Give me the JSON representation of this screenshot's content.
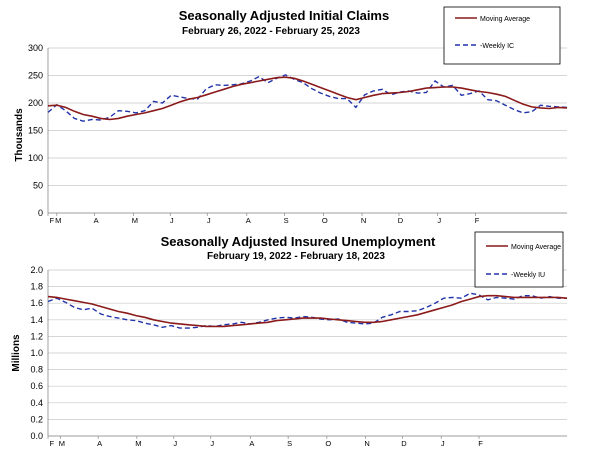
{
  "colors": {
    "moving_average": "#8b1a1a",
    "weekly": "#2233aa",
    "grid": "#c8c8c8",
    "axis": "#888888"
  },
  "chart_data": [
    {
      "type": "line",
      "title": "Seasonally Adjusted Initial Claims",
      "subtitle": "February 26, 2022 - February 25, 2023",
      "ylabel": "Thousands",
      "ylim": [
        0,
        300
      ],
      "yticks": [
        "0",
        "50",
        "100",
        "150",
        "200",
        "250",
        "300"
      ],
      "month_ticks": [
        "F",
        "M",
        "A",
        "M",
        "J",
        "J",
        "A",
        "S",
        "O",
        "N",
        "D",
        "J",
        "F"
      ],
      "month_tick_weeks": [
        0,
        1,
        5.3,
        9.7,
        13.9,
        18.1,
        22.6,
        26.9,
        31.3,
        35.7,
        39.9,
        44.3,
        48.6
      ],
      "grid": true,
      "legend_position": "top-right",
      "series": [
        {
          "name": "Moving Average",
          "style": "solid",
          "values": [
            195,
            196,
            192,
            185,
            179,
            176,
            172,
            170,
            172,
            176,
            179,
            182,
            186,
            190,
            196,
            202,
            207,
            210,
            215,
            220,
            225,
            230,
            234,
            237,
            240,
            243,
            246,
            247,
            245,
            240,
            234,
            228,
            222,
            216,
            210,
            206,
            210,
            214,
            217,
            218,
            219,
            221,
            224,
            227,
            228,
            229,
            229,
            227,
            224,
            221,
            219,
            216,
            212,
            205,
            198,
            193,
            191,
            190,
            192,
            191
          ]
        },
        {
          "name": "Weekly IC",
          "style": "dashed",
          "values": [
            183,
            197,
            186,
            172,
            167,
            170,
            169,
            174,
            186,
            185,
            182,
            186,
            203,
            200,
            214,
            211,
            208,
            207,
            226,
            233,
            232,
            233,
            235,
            240,
            248,
            237,
            245,
            251,
            243,
            237,
            226,
            218,
            212,
            208,
            208,
            192,
            215,
            222,
            225,
            215,
            220,
            222,
            218,
            219,
            240,
            229,
            232,
            214,
            217,
            222,
            206,
            204,
            196,
            188,
            182,
            184,
            196,
            194,
            193,
            192
          ]
        }
      ]
    },
    {
      "type": "line",
      "title": "Seasonally Adjusted Insured Unemployment",
      "subtitle": "February 19, 2022 - February 18, 2023",
      "ylabel": "Millions",
      "ylim": [
        0.0,
        2.0
      ],
      "yticks": [
        "0.0",
        "0.2",
        "0.4",
        "0.6",
        "0.8",
        "1.0",
        "1.2",
        "1.4",
        "1.6",
        "1.8",
        "2.0"
      ],
      "month_ticks": [
        "F",
        "M",
        "A",
        "M",
        "J",
        "J",
        "A",
        "S",
        "O",
        "N",
        "D",
        "J",
        "F"
      ],
      "month_tick_weeks": [
        0,
        1.4,
        5.7,
        10.1,
        14.3,
        18.5,
        23.0,
        27.3,
        31.7,
        36.1,
        40.3,
        44.7,
        49.0
      ],
      "grid": true,
      "legend_position": "top-right",
      "series": [
        {
          "name": "Moving Average",
          "style": "solid",
          "values": [
            1.68,
            1.67,
            1.65,
            1.63,
            1.61,
            1.59,
            1.56,
            1.53,
            1.5,
            1.48,
            1.45,
            1.43,
            1.4,
            1.38,
            1.36,
            1.35,
            1.34,
            1.33,
            1.32,
            1.32,
            1.32,
            1.33,
            1.34,
            1.35,
            1.36,
            1.37,
            1.39,
            1.4,
            1.41,
            1.42,
            1.42,
            1.42,
            1.41,
            1.4,
            1.39,
            1.38,
            1.37,
            1.37,
            1.38,
            1.4,
            1.42,
            1.44,
            1.46,
            1.49,
            1.52,
            1.55,
            1.58,
            1.62,
            1.65,
            1.68,
            1.69,
            1.69,
            1.68,
            1.67,
            1.67,
            1.67,
            1.67,
            1.67,
            1.67,
            1.66
          ]
        },
        {
          "name": "Weekly IU",
          "style": "dashed",
          "values": [
            1.62,
            1.66,
            1.61,
            1.55,
            1.52,
            1.54,
            1.47,
            1.44,
            1.42,
            1.4,
            1.39,
            1.36,
            1.34,
            1.31,
            1.33,
            1.3,
            1.3,
            1.31,
            1.33,
            1.32,
            1.34,
            1.35,
            1.37,
            1.35,
            1.37,
            1.4,
            1.42,
            1.43,
            1.42,
            1.44,
            1.43,
            1.41,
            1.4,
            1.41,
            1.37,
            1.36,
            1.35,
            1.36,
            1.43,
            1.46,
            1.5,
            1.5,
            1.51,
            1.55,
            1.6,
            1.66,
            1.67,
            1.66,
            1.72,
            1.7,
            1.64,
            1.67,
            1.66,
            1.65,
            1.69,
            1.69,
            1.66,
            1.68,
            1.66,
            1.66
          ]
        }
      ]
    }
  ]
}
